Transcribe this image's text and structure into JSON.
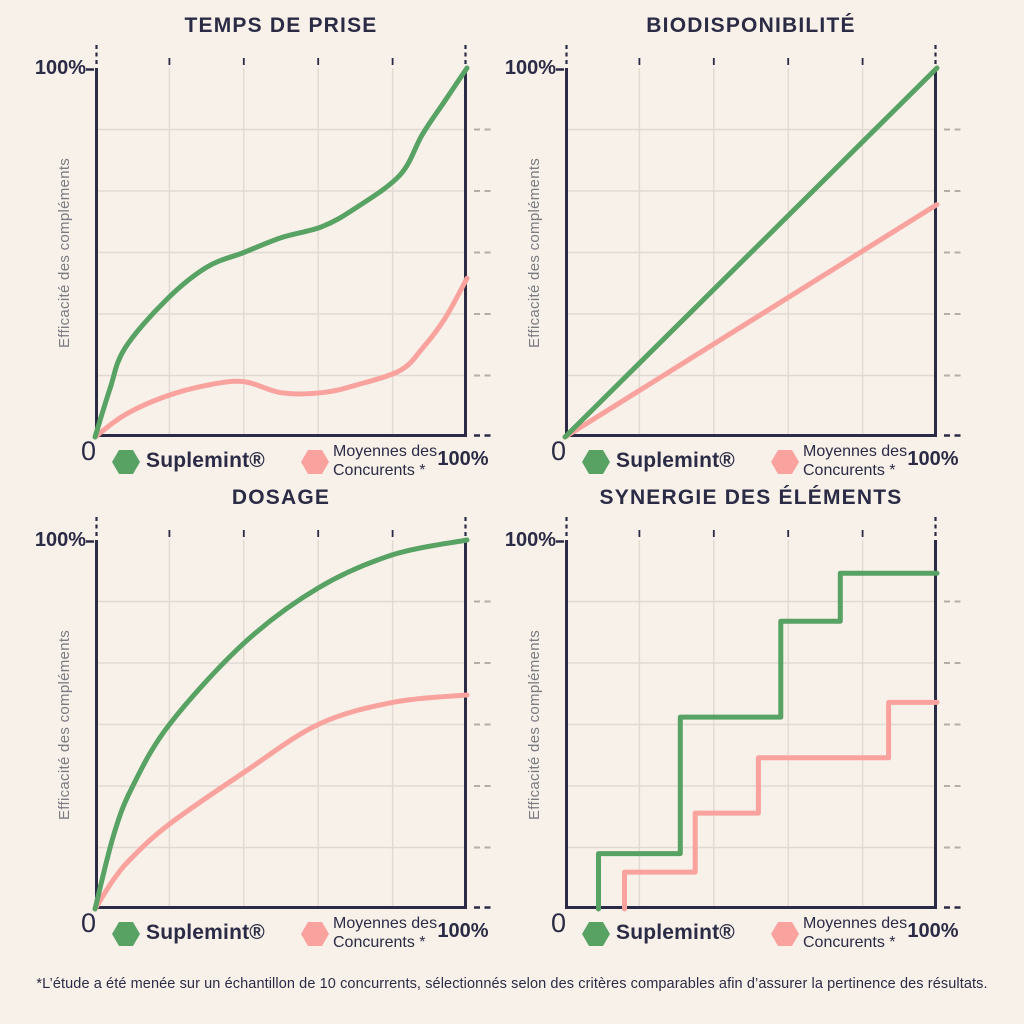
{
  "page": {
    "footnote": "*L’étude a été menée sur un échantillon de 10 concurrents, sélectionnés selon des critères comparables afin d’assurer la pertinence des résultats."
  },
  "colors": {
    "background": "#F7F1EA",
    "ink": "#2B2B45",
    "green": "#58A263",
    "pink": "#F9A29E",
    "grid": "#E1DAD2",
    "muted_label": "#7B7B82",
    "dash_muted": "#B5AEA6"
  },
  "axis": {
    "y_title": "Efficacité des compléments",
    "y_max_label": "100%",
    "origin_label": "0",
    "x_max_label": "100%"
  },
  "legend": {
    "series1_label": "Suplemint®",
    "series2_label": "Moyennes des Concurents *"
  },
  "chart_data": [
    {
      "type": "line",
      "title": "TEMPS DE PRISE",
      "xlabel": "",
      "ylabel": "Efficacité des compléments",
      "xlim": [
        0,
        100
      ],
      "ylim": [
        0,
        100
      ],
      "grid": {
        "columns": 5,
        "rows": 6,
        "visible": true
      },
      "legend_position": "below",
      "series": [
        {
          "name": "Suplemint®",
          "color": "green",
          "smooth": true,
          "points": [
            [
              0,
              0
            ],
            [
              4,
              13
            ],
            [
              8,
              24
            ],
            [
              19,
              37
            ],
            [
              30,
              46
            ],
            [
              40,
              50
            ],
            [
              50,
              54
            ],
            [
              61,
              57
            ],
            [
              70,
              62
            ],
            [
              82,
              71
            ],
            [
              88,
              82
            ],
            [
              94,
              91
            ],
            [
              100,
              100
            ]
          ]
        },
        {
          "name": "Moyennes des Concurents *",
          "color": "pink",
          "smooth": true,
          "points": [
            [
              0,
              0
            ],
            [
              8,
              6
            ],
            [
              19,
              11
            ],
            [
              30,
              14
            ],
            [
              40,
              15
            ],
            [
              50,
              12
            ],
            [
              61,
              12
            ],
            [
              70,
              14
            ],
            [
              82,
              18
            ],
            [
              88,
              24
            ],
            [
              94,
              32
            ],
            [
              100,
              43
            ]
          ]
        }
      ]
    },
    {
      "type": "line",
      "title": "BIODISPONIBILITÉ",
      "xlabel": "",
      "ylabel": "Efficacité des compléments",
      "xlim": [
        0,
        100
      ],
      "ylim": [
        0,
        100
      ],
      "grid": {
        "columns": 5,
        "rows": 6,
        "visible": true
      },
      "legend_position": "below",
      "series": [
        {
          "name": "Suplemint®",
          "color": "green",
          "smooth": false,
          "points": [
            [
              0,
              0
            ],
            [
              100,
              100
            ]
          ]
        },
        {
          "name": "Moyennes des Concurents *",
          "color": "pink",
          "smooth": false,
          "points": [
            [
              0,
              0
            ],
            [
              100,
              63
            ]
          ]
        }
      ]
    },
    {
      "type": "line",
      "title": "DOSAGE",
      "xlabel": "",
      "ylabel": "Efficacité des compléments",
      "xlim": [
        0,
        100
      ],
      "ylim": [
        0,
        100
      ],
      "grid": {
        "columns": 5,
        "rows": 6,
        "visible": true
      },
      "legend_position": "below",
      "series": [
        {
          "name": "Suplemint®",
          "color": "green",
          "smooth": true,
          "points": [
            [
              0,
              0
            ],
            [
              5,
              20
            ],
            [
              10,
              33
            ],
            [
              20,
              50
            ],
            [
              40,
              72
            ],
            [
              60,
              87
            ],
            [
              80,
              96
            ],
            [
              100,
              100
            ]
          ]
        },
        {
          "name": "Moyennes des Concurents *",
          "color": "pink",
          "smooth": true,
          "points": [
            [
              0,
              0
            ],
            [
              5,
              8
            ],
            [
              10,
              14
            ],
            [
              20,
              23
            ],
            [
              40,
              37
            ],
            [
              60,
              50
            ],
            [
              80,
              56
            ],
            [
              100,
              58
            ]
          ]
        }
      ]
    },
    {
      "type": "step",
      "title": "SYNERGIE DES ÉLÉMENTS",
      "xlabel": "",
      "ylabel": "Efficacité des compléments",
      "xlim": [
        0,
        100
      ],
      "ylim": [
        0,
        100
      ],
      "grid": {
        "columns": 5,
        "rows": 6,
        "visible": true
      },
      "legend_position": "below",
      "series": [
        {
          "name": "Suplemint®",
          "color": "green",
          "smooth": false,
          "points": [
            [
              9,
              0
            ],
            [
              9,
              15
            ],
            [
              31,
              15
            ],
            [
              31,
              52
            ],
            [
              58,
              52
            ],
            [
              58,
              78
            ],
            [
              74,
              78
            ],
            [
              74,
              91
            ],
            [
              100,
              91
            ]
          ]
        },
        {
          "name": "Moyennes des Concurents *",
          "color": "pink",
          "smooth": false,
          "points": [
            [
              16,
              0
            ],
            [
              16,
              10
            ],
            [
              35,
              10
            ],
            [
              35,
              26
            ],
            [
              52,
              26
            ],
            [
              52,
              41
            ],
            [
              87,
              41
            ],
            [
              87,
              56
            ],
            [
              100,
              56
            ]
          ]
        }
      ]
    }
  ]
}
